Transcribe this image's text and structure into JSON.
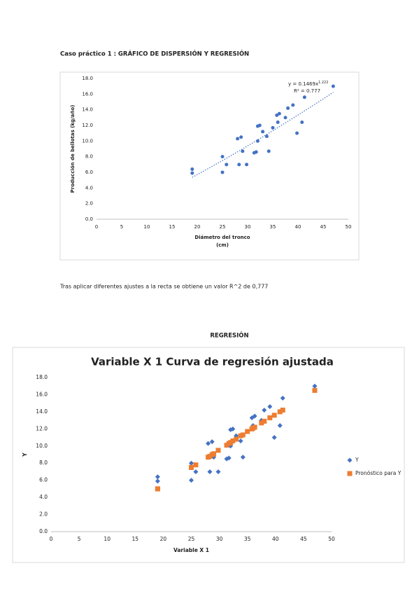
{
  "heading": "Caso práctico 1 : GRÁFICO DE DISPERSIÓN Y REGRESIÓN",
  "paragraph": "Tras aplicar diferentes ajustes a la recta se obtiene un valor R^2 de 0,777",
  "section_title": "REGRESIÓN",
  "chart_data": [
    {
      "type": "scatter",
      "x_label": [
        "Diámetro del tronco",
        "(cm)"
      ],
      "y_label": "Producción de bellotas (kg/año)",
      "annotations": {
        "equation": "y = 0.1469x",
        "exponent": "1.222",
        "r2": "R² = 0.777"
      },
      "trendline": "power",
      "series": [
        {
          "color": "#4472c4",
          "marker": "circle",
          "x": [
            19,
            19,
            25,
            25,
            25.8,
            28,
            28.3,
            28.7,
            29,
            29.8,
            31.3,
            31.7,
            32,
            32,
            32.4,
            33,
            33.8,
            34.2,
            35,
            35.8,
            36.3,
            36,
            37.5,
            38,
            39,
            39.8,
            40.8,
            41.3,
            47
          ],
          "values": [
            6.4,
            5.9,
            8.0,
            6.0,
            7.0,
            10.3,
            7.0,
            10.5,
            8.7,
            7.0,
            8.5,
            8.6,
            11.9,
            10.0,
            12.0,
            11.2,
            10.6,
            8.7,
            11.7,
            13.3,
            13.5,
            12.4,
            13.0,
            14.2,
            14.6,
            11.0,
            12.4,
            15.6,
            17.0
          ]
        }
      ],
      "xlim": [
        0,
        50
      ],
      "xticks": [
        0,
        5,
        10,
        15,
        20,
        25,
        30,
        35,
        40,
        45,
        50
      ],
      "ylim": [
        0,
        18
      ],
      "yticks": [
        {
          "value": 0,
          "label": "0.0"
        },
        {
          "value": 2,
          "label": "2.0"
        },
        {
          "value": 4,
          "label": "4.0"
        },
        {
          "value": 6,
          "label": "6.0"
        },
        {
          "value": 8,
          "label": "8.0"
        },
        {
          "value": 10,
          "label": "10.0"
        },
        {
          "value": 12,
          "label": "12.0"
        },
        {
          "value": 14,
          "label": "14.0"
        },
        {
          "value": 16,
          "label": "16.0"
        },
        {
          "value": 18,
          "label": "18.0"
        }
      ]
    },
    {
      "type": "scatter",
      "title": "Variable X 1 Curva de regresión ajustada",
      "x_label": [
        "Variable X 1"
      ],
      "y_label": "Y",
      "legend": "right",
      "series": [
        {
          "name": "Y",
          "color": "#4472c4",
          "marker": "diamond",
          "x": [
            19,
            19,
            25,
            25,
            25.8,
            28,
            28.3,
            28.7,
            29,
            29.8,
            31.3,
            31.7,
            32,
            32,
            32.4,
            33,
            33.8,
            34.2,
            35,
            35.8,
            36.3,
            36,
            37.5,
            38,
            39,
            39.8,
            40.8,
            41.3,
            47
          ],
          "values": [
            6.4,
            5.9,
            8.0,
            6.0,
            7.0,
            10.3,
            7.0,
            10.5,
            8.7,
            7.0,
            8.5,
            8.6,
            11.9,
            10.0,
            12.0,
            11.2,
            10.6,
            8.7,
            11.7,
            13.3,
            13.5,
            12.4,
            13.0,
            14.2,
            14.6,
            11.0,
            12.4,
            15.6,
            17.0
          ]
        },
        {
          "name": "Pronóstico para Y",
          "color": "#ed7d31",
          "marker": "square",
          "x": [
            19,
            19,
            25,
            25,
            25.8,
            28,
            28.3,
            28.7,
            29,
            29.8,
            31.3,
            31.7,
            32,
            32,
            32.4,
            33,
            33.8,
            34.2,
            35,
            35.8,
            36.3,
            36,
            37.5,
            38,
            39,
            39.8,
            40.8,
            41.3,
            47
          ],
          "values": [
            5.0,
            5.0,
            7.5,
            7.5,
            7.8,
            8.7,
            8.8,
            9.0,
            9.1,
            9.5,
            10.1,
            10.3,
            10.4,
            10.4,
            10.6,
            10.8,
            11.2,
            11.3,
            11.7,
            12.0,
            12.2,
            12.1,
            12.7,
            12.9,
            13.3,
            13.6,
            14.0,
            14.2,
            16.5
          ]
        }
      ],
      "xlim": [
        0,
        50
      ],
      "xticks": [
        0,
        5,
        10,
        15,
        20,
        25,
        30,
        35,
        40,
        45,
        50
      ],
      "ylim": [
        0,
        18
      ],
      "yticks": [
        {
          "value": 0,
          "label": "0.0"
        },
        {
          "value": 2,
          "label": "2.0"
        },
        {
          "value": 4,
          "label": "4.0"
        },
        {
          "value": 6,
          "label": "6.0"
        },
        {
          "value": 8,
          "label": "8.0"
        },
        {
          "value": 10,
          "label": "10.0"
        },
        {
          "value": 12,
          "label": "12.0"
        },
        {
          "value": 14,
          "label": "14.0"
        },
        {
          "value": 16,
          "label": "16.0"
        },
        {
          "value": 18,
          "label": "18.0"
        }
      ]
    }
  ]
}
